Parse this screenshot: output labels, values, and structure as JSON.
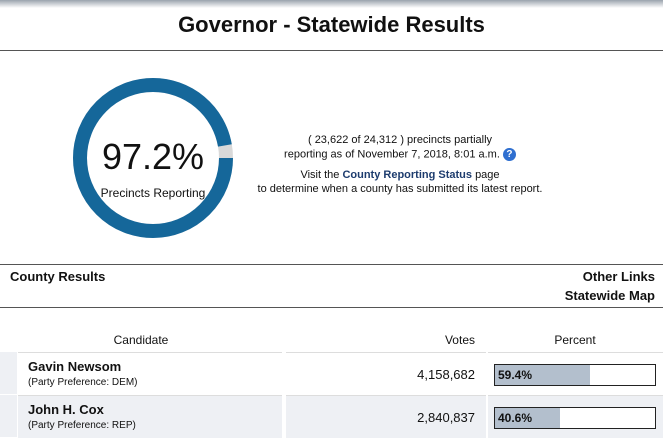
{
  "header": {
    "title": "Governor - Statewide Results"
  },
  "reporting": {
    "value": 97.2,
    "label": "97.2%",
    "caption": "Precincts Reporting"
  },
  "status": {
    "line1": "( 23,622 of 24,312 ) precincts partially",
    "line2": "reporting as of November 7, 2018, 8:01 a.m.",
    "help_icon": "?",
    "visit_prefix": "Visit the",
    "visit_link": "County Reporting Status",
    "visit_suffix": "page",
    "visit_line2": "to determine when a county has submitted its latest report."
  },
  "section": {
    "county_results": "County Results",
    "other_links": "Other Links",
    "statewide_map": "Statewide Map"
  },
  "table": {
    "columns": [
      "Candidate",
      "Votes",
      "Percent"
    ],
    "rows": [
      {
        "name": "Gavin Newsom",
        "party": "(Party Preference: DEM)",
        "votes": "4,158,682",
        "percent": {
          "value": 59.4,
          "label": "59.4%"
        }
      },
      {
        "name": "John H. Cox",
        "party": "(Party Preference: REP)",
        "votes": "2,840,837",
        "percent": {
          "value": 40.6,
          "label": "40.6%"
        }
      }
    ]
  }
}
